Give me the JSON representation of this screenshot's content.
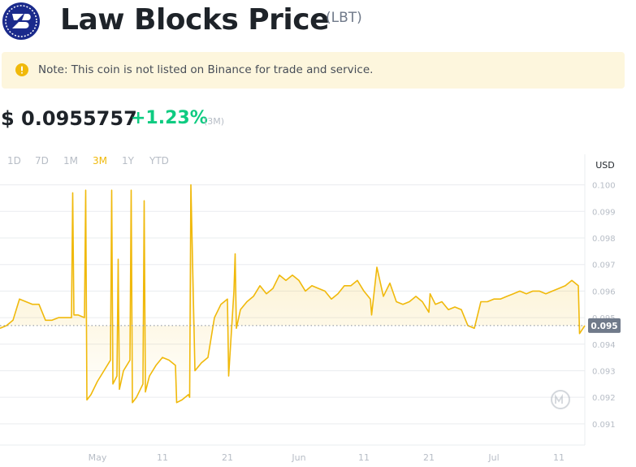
{
  "header": {
    "title": "Law Blocks Price",
    "symbol": "(LBT)"
  },
  "note": {
    "text": "Note: This coin is not listed on Binance for trade and service."
  },
  "price": {
    "value": "$ 0.0955757",
    "change": "+1.23%",
    "period": "(3M)"
  },
  "ranges": [
    {
      "label": "1D",
      "active": false
    },
    {
      "label": "7D",
      "active": false
    },
    {
      "label": "1M",
      "active": false
    },
    {
      "label": "3M",
      "active": true
    },
    {
      "label": "1Y",
      "active": false
    },
    {
      "label": "YTD",
      "active": false
    }
  ],
  "colors": {
    "line": "#f0b90b",
    "positive": "#0ecb81",
    "note_bg": "#fdf6dd",
    "note_icon": "#f0b90b",
    "grid": "#eaecef",
    "muted": "#b7bdc6"
  },
  "chart_data": {
    "type": "area",
    "currency_label": "USD",
    "current_value_label": "0.095",
    "current_value": 0.0947,
    "ylim": [
      0.0902,
      0.1006
    ],
    "y_ticks": [
      {
        "value": 0.1,
        "label": "0.100"
      },
      {
        "value": 0.099,
        "label": "0.099"
      },
      {
        "value": 0.098,
        "label": "0.098"
      },
      {
        "value": 0.097,
        "label": "0.097"
      },
      {
        "value": 0.096,
        "label": "0.096"
      },
      {
        "value": 0.095,
        "label": "0.095"
      },
      {
        "value": 0.094,
        "label": "0.094"
      },
      {
        "value": 0.093,
        "label": "0.093"
      },
      {
        "value": 0.092,
        "label": "0.092"
      },
      {
        "value": 0.091,
        "label": "0.091"
      }
    ],
    "xlim": [
      "2024-04-16",
      "2024-07-15"
    ],
    "x_ticks": [
      {
        "date": "2024-05-01",
        "label": "May"
      },
      {
        "date": "2024-05-11",
        "label": "11"
      },
      {
        "date": "2024-05-21",
        "label": "21"
      },
      {
        "date": "2024-06-01",
        "label": "Jun"
      },
      {
        "date": "2024-06-11",
        "label": "11"
      },
      {
        "date": "2024-06-21",
        "label": "21"
      },
      {
        "date": "2024-07-01",
        "label": "Jul"
      },
      {
        "date": "2024-07-11",
        "label": "11"
      }
    ],
    "series": [
      {
        "points": [
          [
            "2024-04-16",
            0.0946
          ],
          [
            "2024-04-17",
            0.0947
          ],
          [
            "2024-04-18",
            0.0949
          ],
          [
            "2024-04-19",
            0.0957
          ],
          [
            "2024-04-20",
            0.0956
          ],
          [
            "2024-04-21",
            0.0955
          ],
          [
            "2024-04-22",
            0.0955
          ],
          [
            "2024-04-23",
            0.0949
          ],
          [
            "2024-04-24",
            0.0949
          ],
          [
            "2024-04-25",
            0.095
          ],
          [
            "2024-04-26",
            0.095
          ],
          [
            "2024-04-27",
            0.095
          ],
          [
            "2024-04-27",
            0.0997
          ],
          [
            "2024-04-27",
            0.0951
          ],
          [
            "2024-04-28",
            0.0951
          ],
          [
            "2024-04-29",
            0.095
          ],
          [
            "2024-04-29",
            0.0998
          ],
          [
            "2024-04-29",
            0.0919
          ],
          [
            "2024-04-30",
            0.0921
          ],
          [
            "2024-05-01",
            0.0926
          ],
          [
            "2024-05-02",
            0.093
          ],
          [
            "2024-05-03",
            0.0934
          ],
          [
            "2024-05-03",
            0.0998
          ],
          [
            "2024-05-03",
            0.0925
          ],
          [
            "2024-05-04",
            0.0928
          ],
          [
            "2024-05-04",
            0.0972
          ],
          [
            "2024-05-04",
            0.0923
          ],
          [
            "2024-05-05",
            0.093
          ],
          [
            "2024-05-06",
            0.0934
          ],
          [
            "2024-05-06",
            0.0998
          ],
          [
            "2024-05-06",
            0.0918
          ],
          [
            "2024-05-07",
            0.092
          ],
          [
            "2024-05-08",
            0.0925
          ],
          [
            "2024-05-08",
            0.0994
          ],
          [
            "2024-05-08",
            0.0922
          ],
          [
            "2024-05-09",
            0.0928
          ],
          [
            "2024-05-10",
            0.0932
          ],
          [
            "2024-05-11",
            0.0935
          ],
          [
            "2024-05-12",
            0.0934
          ],
          [
            "2024-05-13",
            0.0932
          ],
          [
            "2024-05-13",
            0.0918
          ],
          [
            "2024-05-14",
            0.0919
          ],
          [
            "2024-05-15",
            0.0921
          ],
          [
            "2024-05-15",
            0.092
          ],
          [
            "2024-05-15",
            0.1
          ],
          [
            "2024-05-16",
            0.093
          ],
          [
            "2024-05-17",
            0.0933
          ],
          [
            "2024-05-18",
            0.0935
          ],
          [
            "2024-05-19",
            0.095
          ],
          [
            "2024-05-20",
            0.0955
          ],
          [
            "2024-05-21",
            0.0957
          ],
          [
            "2024-05-21",
            0.0928
          ],
          [
            "2024-05-22",
            0.096
          ],
          [
            "2024-05-22",
            0.0974
          ],
          [
            "2024-05-22",
            0.0946
          ],
          [
            "2024-05-23",
            0.0953
          ],
          [
            "2024-05-24",
            0.0956
          ],
          [
            "2024-05-25",
            0.0958
          ],
          [
            "2024-05-26",
            0.0962
          ],
          [
            "2024-05-27",
            0.0959
          ],
          [
            "2024-05-28",
            0.0961
          ],
          [
            "2024-05-29",
            0.0966
          ],
          [
            "2024-05-30",
            0.0964
          ],
          [
            "2024-05-31",
            0.0966
          ],
          [
            "2024-06-01",
            0.0964
          ],
          [
            "2024-06-02",
            0.096
          ],
          [
            "2024-06-03",
            0.0962
          ],
          [
            "2024-06-04",
            0.0961
          ],
          [
            "2024-06-05",
            0.096
          ],
          [
            "2024-06-06",
            0.0957
          ],
          [
            "2024-06-07",
            0.0959
          ],
          [
            "2024-06-08",
            0.0962
          ],
          [
            "2024-06-09",
            0.0962
          ],
          [
            "2024-06-10",
            0.0964
          ],
          [
            "2024-06-11",
            0.096
          ],
          [
            "2024-06-12",
            0.0957
          ],
          [
            "2024-06-12",
            0.0951
          ],
          [
            "2024-06-13",
            0.0969
          ],
          [
            "2024-06-14",
            0.0958
          ],
          [
            "2024-06-15",
            0.0963
          ],
          [
            "2024-06-16",
            0.0956
          ],
          [
            "2024-06-17",
            0.0955
          ],
          [
            "2024-06-18",
            0.0956
          ],
          [
            "2024-06-19",
            0.0958
          ],
          [
            "2024-06-20",
            0.0956
          ],
          [
            "2024-06-21",
            0.0952
          ],
          [
            "2024-06-21",
            0.0959
          ],
          [
            "2024-06-22",
            0.0955
          ],
          [
            "2024-06-23",
            0.0956
          ],
          [
            "2024-06-24",
            0.0953
          ],
          [
            "2024-06-25",
            0.0954
          ],
          [
            "2024-06-26",
            0.0953
          ],
          [
            "2024-06-27",
            0.0947
          ],
          [
            "2024-06-28",
            0.0946
          ],
          [
            "2024-06-29",
            0.0956
          ],
          [
            "2024-06-30",
            0.0956
          ],
          [
            "2024-07-01",
            0.0957
          ],
          [
            "2024-07-02",
            0.0957
          ],
          [
            "2024-07-03",
            0.0958
          ],
          [
            "2024-07-04",
            0.0959
          ],
          [
            "2024-07-05",
            0.096
          ],
          [
            "2024-07-06",
            0.0959
          ],
          [
            "2024-07-07",
            0.096
          ],
          [
            "2024-07-08",
            0.096
          ],
          [
            "2024-07-09",
            0.0959
          ],
          [
            "2024-07-10",
            0.096
          ],
          [
            "2024-07-11",
            0.0961
          ],
          [
            "2024-07-12",
            0.0962
          ],
          [
            "2024-07-13",
            0.0964
          ],
          [
            "2024-07-14",
            0.0962
          ],
          [
            "2024-07-14",
            0.0944
          ],
          [
            "2024-07-15",
            0.0947
          ]
        ]
      }
    ]
  }
}
